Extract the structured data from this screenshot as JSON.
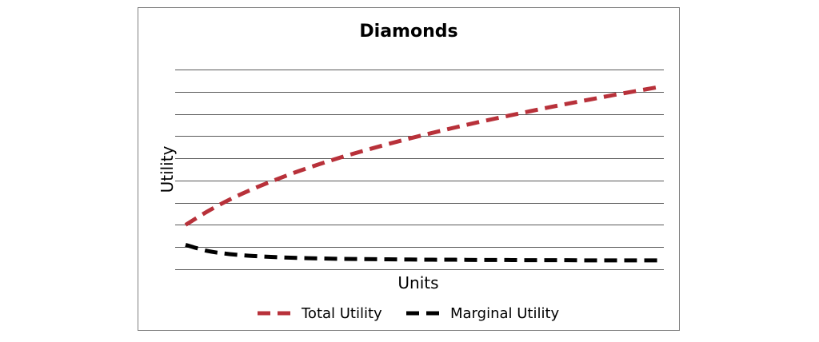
{
  "chart_data": {
    "type": "line",
    "title": "Diamonds",
    "xlabel": "Units",
    "ylabel": "Utility",
    "x": [
      1,
      2,
      3,
      4,
      5,
      6,
      7,
      8,
      9,
      10,
      11,
      12,
      13,
      14,
      15,
      16,
      17,
      18,
      19,
      20,
      21,
      22
    ],
    "xlim": [
      1,
      22
    ],
    "ylim": [
      0,
      9
    ],
    "y_gridlines": 9,
    "grid": true,
    "legend_position": "bottom",
    "series": [
      {
        "name": "Total Utility",
        "color": "#b8313a",
        "values": [
          2.0,
          2.62,
          3.16,
          3.62,
          4.03,
          4.41,
          4.75,
          5.07,
          5.36,
          5.64,
          5.9,
          6.15,
          6.39,
          6.62,
          6.84,
          7.05,
          7.26,
          7.46,
          7.65,
          7.84,
          8.02,
          8.2
        ]
      },
      {
        "name": "Marginal Utility",
        "color": "#000000",
        "values": [
          1.1,
          0.82,
          0.68,
          0.6,
          0.55,
          0.51,
          0.49,
          0.47,
          0.46,
          0.45,
          0.44,
          0.43,
          0.43,
          0.42,
          0.42,
          0.41,
          0.41,
          0.41,
          0.4,
          0.4,
          0.4,
          0.4
        ]
      }
    ]
  }
}
